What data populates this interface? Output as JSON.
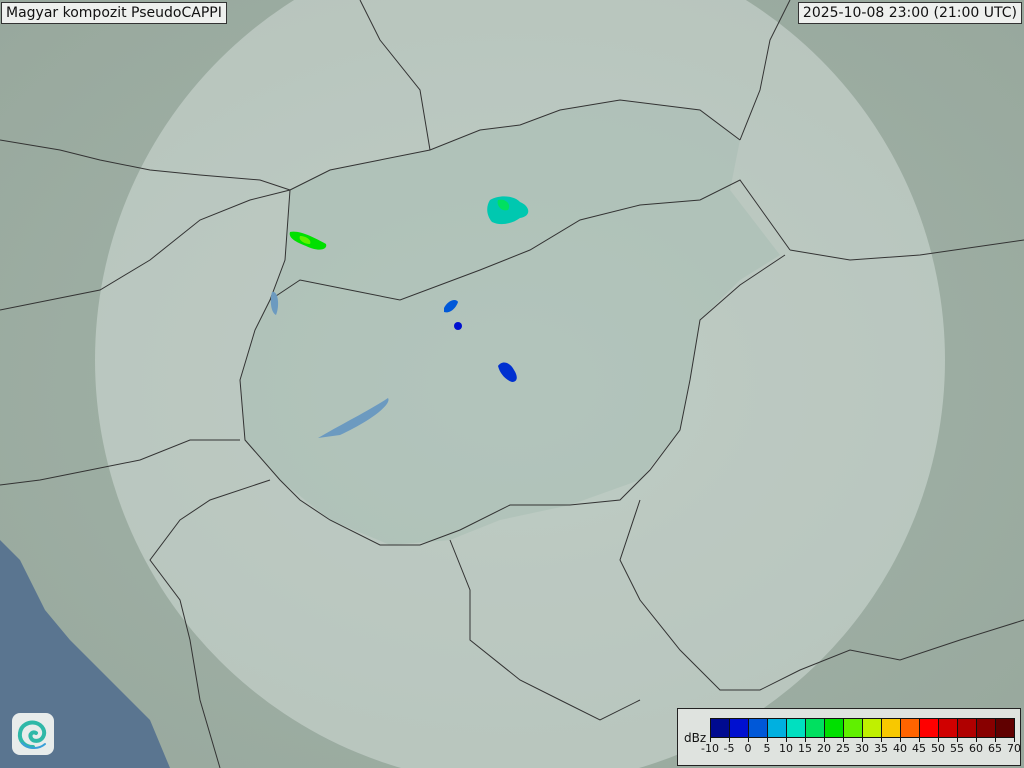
{
  "header": {
    "title": "Magyar kompozit  PseudoCAPPI",
    "timestamp": "2025-10-08 23:00 (21:00 UTC)"
  },
  "legend": {
    "unit": "dBz",
    "ticks": [
      "-10",
      "-5",
      "0",
      "5",
      "10",
      "15",
      "20",
      "25",
      "30",
      "35",
      "40",
      "45",
      "50",
      "55",
      "60",
      "65",
      "70"
    ],
    "colors": [
      "#000a90",
      "#0010d0",
      "#0058d8",
      "#00b0e0",
      "#00e0c0",
      "#00e060",
      "#00e000",
      "#60f000",
      "#c0f000",
      "#f8c800",
      "#ff6400",
      "#ff0000",
      "#d00000",
      "#b00000",
      "#880000",
      "#600000"
    ]
  },
  "logo": {
    "icon": "swirl-logo-icon"
  },
  "map": {
    "terrain_color": "#8fa398",
    "coverage_color": "#dfe8e4",
    "border_color": "#333333",
    "sea_color": "#5a7590"
  }
}
